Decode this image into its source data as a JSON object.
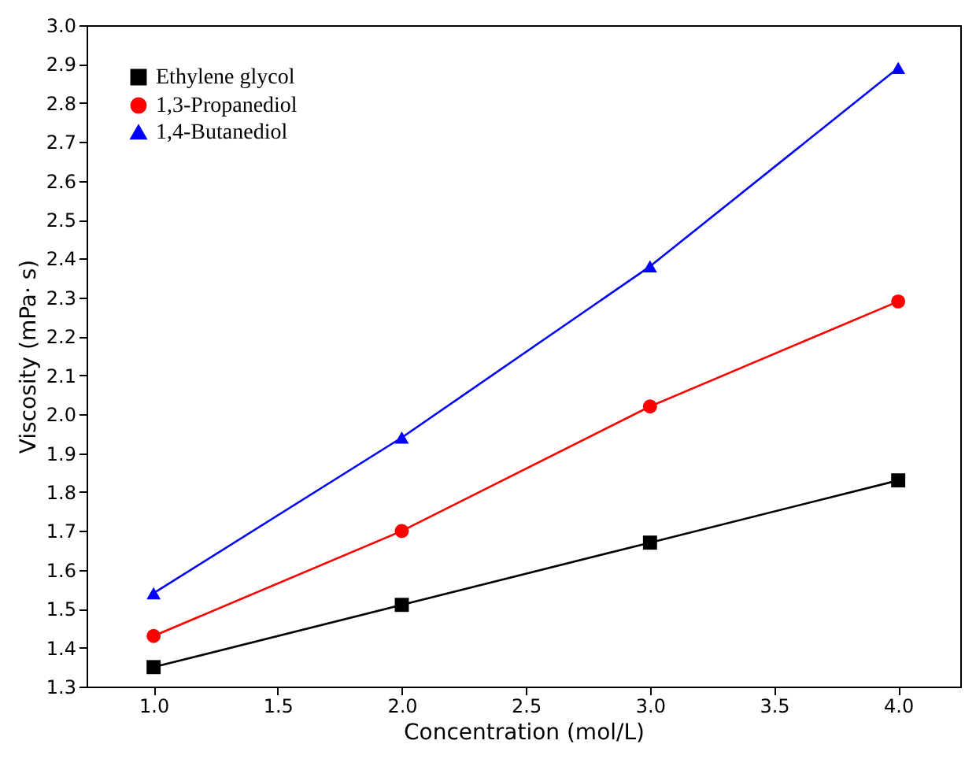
{
  "chart_data": {
    "type": "line",
    "xlabel": "Concentration (mol/L)",
    "ylabel": "Viscosity (mPa· s)",
    "x": [
      1.0,
      2.0,
      3.0,
      4.0
    ],
    "series": [
      {
        "name": "Ethylene glycol",
        "color": "#000000",
        "marker": "square",
        "values": [
          1.35,
          1.51,
          1.67,
          1.83
        ]
      },
      {
        "name": "1,3-Propanediol",
        "color": "#ff0000",
        "marker": "circle",
        "values": [
          1.43,
          1.7,
          2.02,
          2.29
        ]
      },
      {
        "name": "1,4-Butanediol",
        "color": "#0000ff",
        "marker": "triangle",
        "values": [
          1.54,
          1.94,
          2.38,
          2.89
        ]
      }
    ],
    "xlim": [
      0.73,
      4.25
    ],
    "xticks": [
      {
        "value": 1.0,
        "label": "1.0"
      },
      1.5,
      {
        "value": 2.0,
        "label": "2.0"
      },
      2.5,
      {
        "value": 3.0,
        "label": "3.0"
      },
      3.5,
      {
        "value": 4.0,
        "label": "4.0"
      }
    ],
    "ylim": [
      1.3,
      3.0
    ],
    "yticks": [
      1.3,
      1.4,
      1.5,
      1.6,
      1.7,
      1.8,
      1.9,
      {
        "value": 2.0,
        "label": "2.0"
      },
      2.1,
      2.2,
      2.3,
      2.4,
      2.5,
      2.6,
      2.7,
      2.8,
      2.9,
      {
        "value": 3.0,
        "label": "3.0"
      }
    ],
    "legend": "top left",
    "grid": false,
    "line_style": "solid"
  }
}
